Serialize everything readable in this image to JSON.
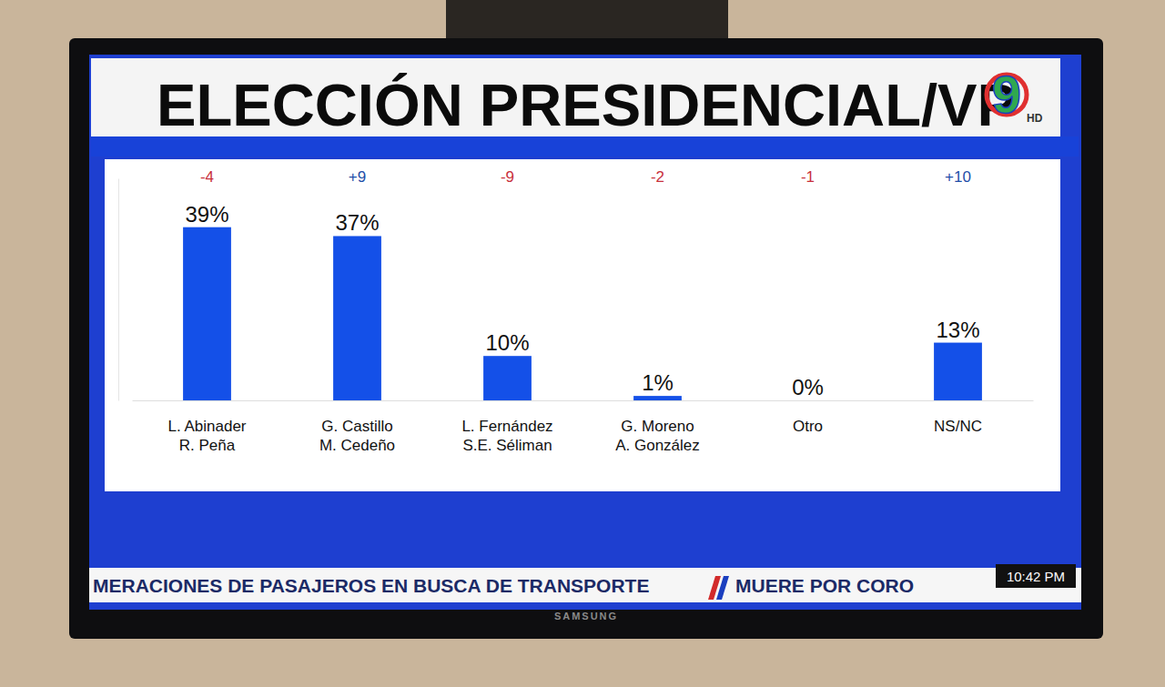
{
  "chart_data": {
    "type": "bar",
    "title": "ELECCIÓN PRESIDENCIAL/VP",
    "categories": [
      "L. Abinader\nR. Peña",
      "G. Castillo\nM. Cedeño",
      "L. Fernández\nS.E. Séliman",
      "G. Moreno\nA. González",
      "Otro",
      "NS/NC"
    ],
    "values": [
      39,
      37,
      10,
      1,
      0,
      13
    ],
    "value_labels": [
      "39%",
      "37%",
      "10%",
      "1%",
      "0%",
      "13%"
    ],
    "changes": [
      -4,
      9,
      -9,
      -2,
      -1,
      10
    ],
    "change_labels": [
      "-4",
      "+9",
      "-9",
      "-2",
      "-1",
      "+10"
    ],
    "color": "#1450e8",
    "ylim": [
      0,
      50
    ],
    "yticks": [],
    "grid": false,
    "data_labels": true,
    "tick_labels": "x"
  },
  "logo": {
    "number": "9",
    "label": "HD"
  },
  "ticker": {
    "items": [
      "MERACIONES DE PASAJEROS EN BUSCA DE TRANSPORTE",
      "MUERE POR CORO"
    ],
    "time": "10:42 PM"
  },
  "device": {
    "brand": "SAMSUNG"
  }
}
